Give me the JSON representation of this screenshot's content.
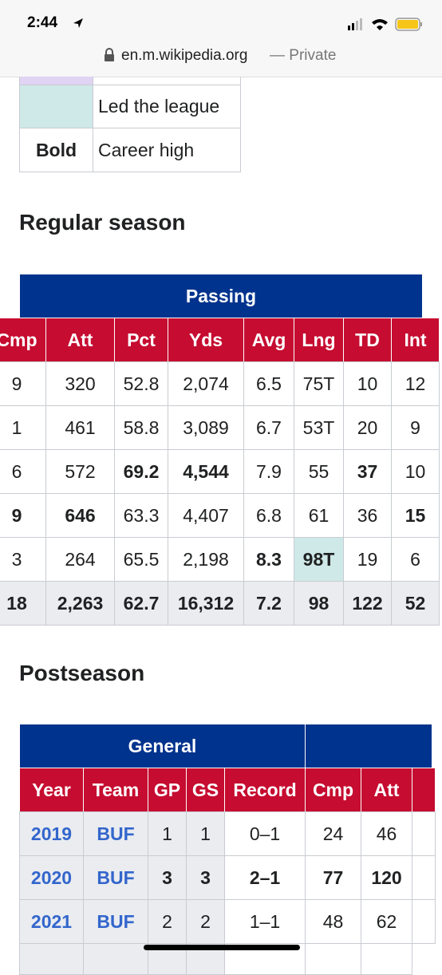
{
  "status_bar": {
    "time": "2:44"
  },
  "address_bar": {
    "url": "en.m.wikipedia.org",
    "mode": "— Private"
  },
  "legend": [
    {
      "label": "Led the league"
    },
    {
      "key": "Bold",
      "label": "Career high"
    }
  ],
  "regular_season": {
    "heading": "Regular season",
    "group": "Passing",
    "columns": [
      "Cmp",
      "Att",
      "Pct",
      "Yds",
      "Avg",
      "Lng",
      "TD",
      "Int"
    ],
    "rows": [
      [
        "9",
        "320",
        "52.8",
        "2,074",
        "6.5",
        "75T",
        "10",
        "12"
      ],
      [
        "1",
        "461",
        "58.8",
        "3,089",
        "6.7",
        "53T",
        "20",
        "9"
      ],
      [
        "6",
        "572",
        "69.2",
        "4,544",
        "7.9",
        "55",
        "37",
        "10"
      ],
      [
        "9",
        "646",
        "63.3",
        "4,407",
        "6.8",
        "61",
        "36",
        "15"
      ],
      [
        "3",
        "264",
        "65.5",
        "2,198",
        "8.3",
        "98T",
        "19",
        "6"
      ],
      [
        "18",
        "2,263",
        "62.7",
        "16,312",
        "7.2",
        "98",
        "122",
        "52"
      ]
    ]
  },
  "postseason": {
    "heading": "Postseason",
    "group": "General",
    "columns": [
      "Year",
      "Team",
      "GP",
      "GS",
      "Record",
      "Cmp",
      "Att"
    ],
    "rows": [
      [
        "2019",
        "BUF",
        "1",
        "1",
        "0–1",
        "24",
        "46"
      ],
      [
        "2020",
        "BUF",
        "3",
        "3",
        "2–1",
        "77",
        "120"
      ],
      [
        "2021",
        "BUF",
        "2",
        "2",
        "1–1",
        "48",
        "62"
      ]
    ]
  }
}
